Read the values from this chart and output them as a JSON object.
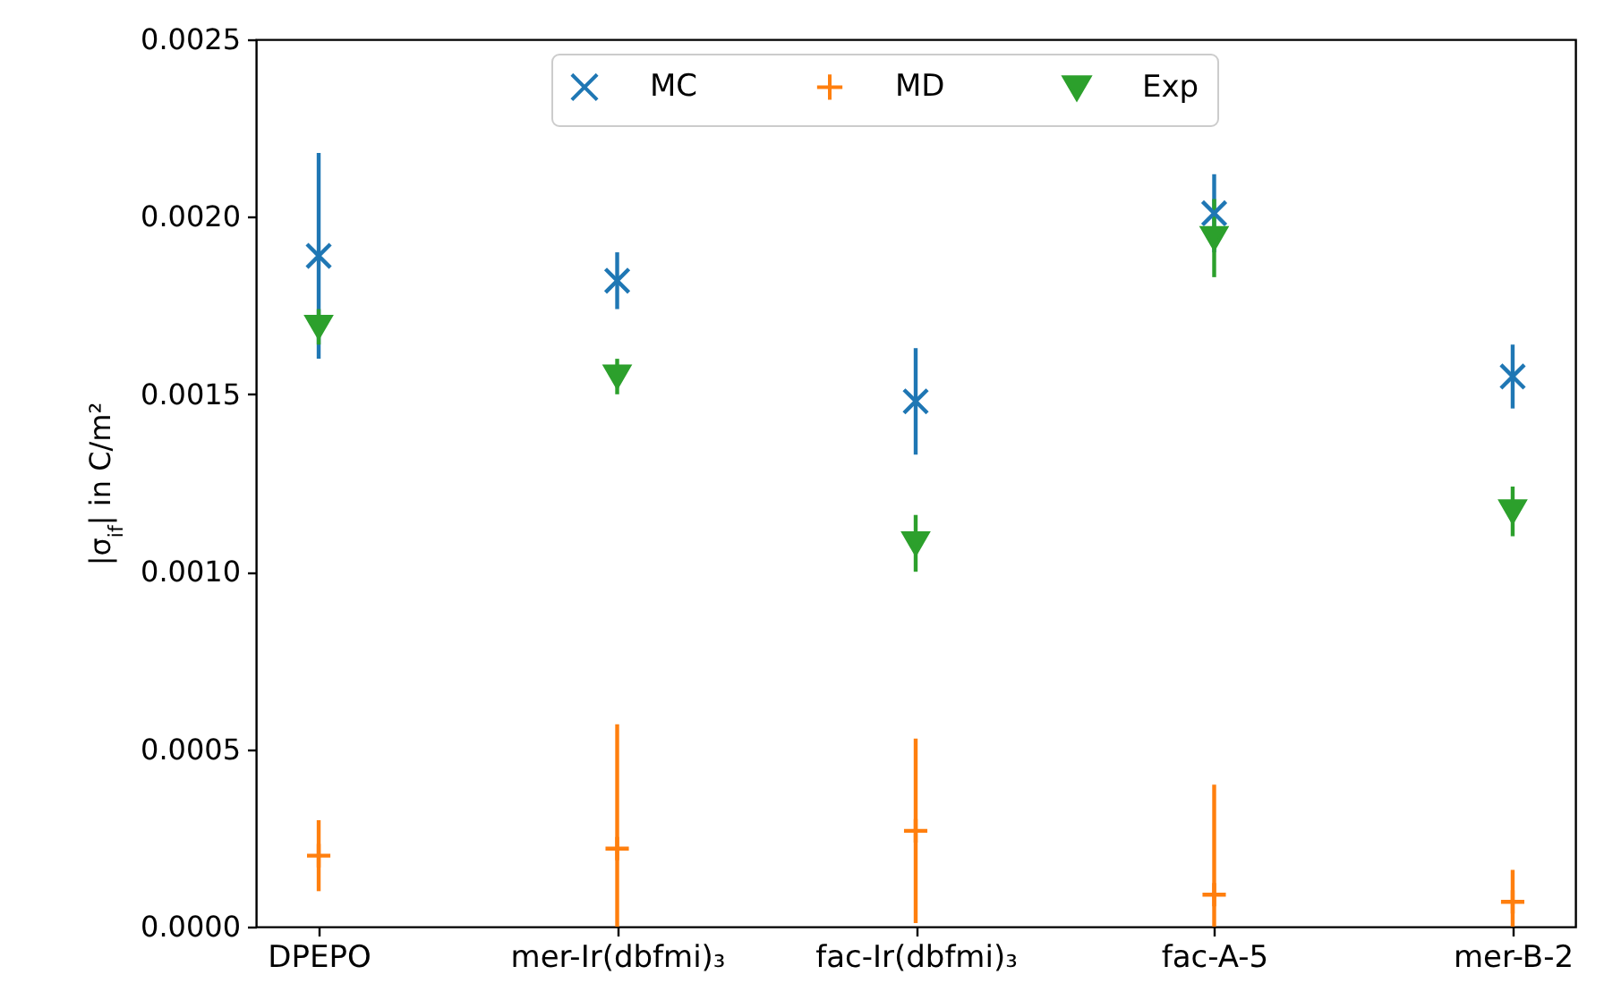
{
  "chart_data": {
    "type": "scatter",
    "ylabel": "|σ$_{if}$| in C/m²",
    "categories": [
      "DPEPO",
      "mer-Ir(dbfmi)₃",
      "fac-Ir(dbfmi)₃",
      "fac-A-5",
      "mer-B-2"
    ],
    "series": [
      {
        "name": "MC",
        "color": "#1f77b4",
        "marker": "cross",
        "values": [
          0.00189,
          0.00182,
          0.00148,
          0.00201,
          0.00155
        ],
        "errors": [
          0.00029,
          8e-05,
          0.00015,
          0.00011,
          9e-05
        ]
      },
      {
        "name": "MD",
        "color": "#ff7f0e",
        "values": [
          0.0002,
          0.00022,
          0.00027,
          9e-05,
          7e-05
        ],
        "errors": [
          0.0001,
          [
            0,
            0.00057
          ],
          0.00026,
          [
            0,
            0.0004
          ],
          [
            0,
            0.00016
          ]
        ]
      },
      {
        "name": "Exp",
        "color": "#2ca02c",
        "marker": "triangle",
        "values": [
          0.00169,
          0.00155,
          0.00108,
          0.00194,
          0.00117
        ],
        "errors": [
          5e-05,
          5e-05,
          8e-05,
          0.00011,
          7e-05
        ]
      }
    ],
    "ylim": [
      0,
      0.0025
    ],
    "yticks": [
      {
        "value": 0,
        "label": "0.0000"
      },
      0.0005,
      {
        "value": 0.001,
        "label": "0.0010"
      },
      0.0015,
      {
        "value": 0.002,
        "label": "0.0020"
      },
      0.0025
    ],
    "legend": "top"
  }
}
